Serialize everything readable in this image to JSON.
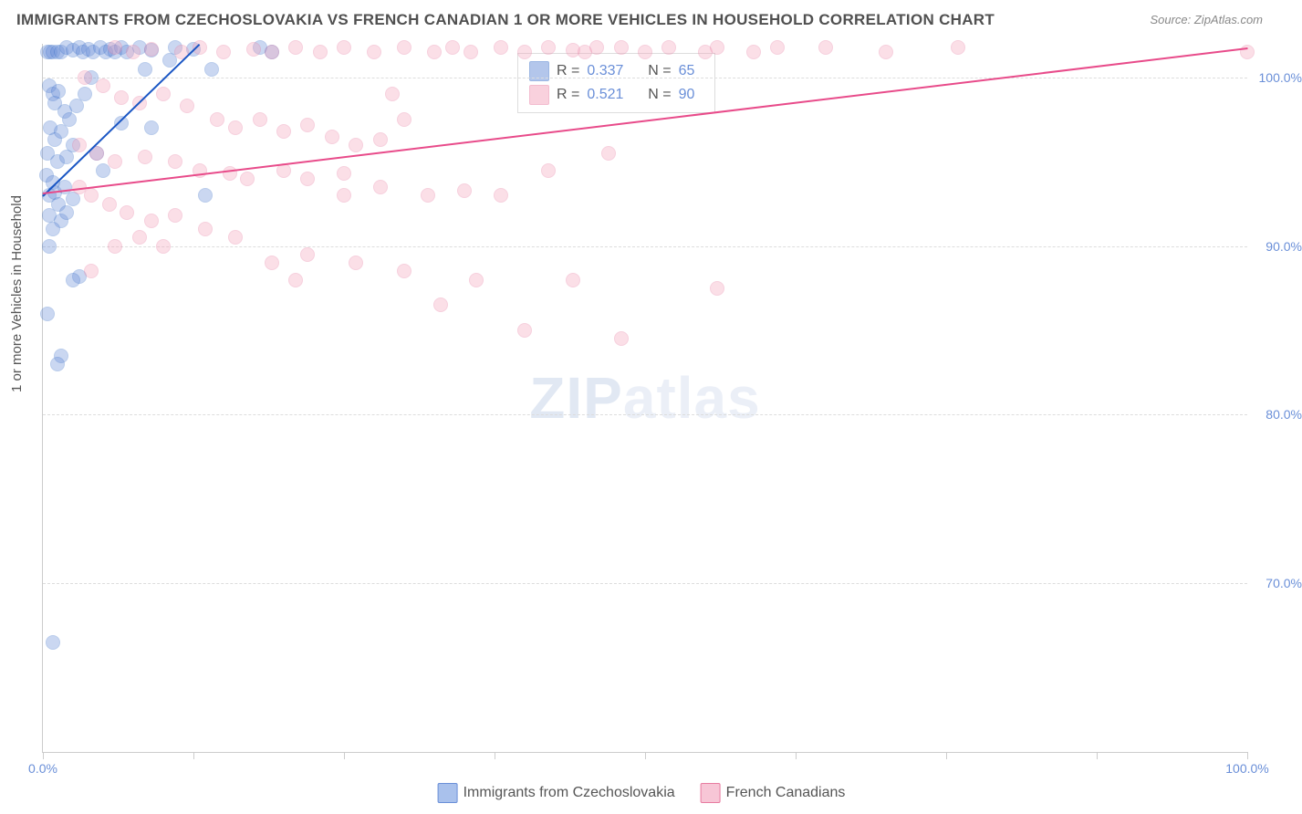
{
  "title": "IMMIGRANTS FROM CZECHOSLOVAKIA VS FRENCH CANADIAN 1 OR MORE VEHICLES IN HOUSEHOLD CORRELATION CHART",
  "source": "Source: ZipAtlas.com",
  "ylabel": "1 or more Vehicles in Household",
  "watermark_zip": "ZIP",
  "watermark_rest": "atlas",
  "chart": {
    "type": "scatter",
    "background_color": "#ffffff",
    "grid_color": "#dddddd",
    "axis_color": "#cccccc",
    "tick_label_color": "#6a8fd8",
    "label_color": "#555555",
    "label_fontsize": 15,
    "tick_fontsize": 14,
    "title_fontsize": 17,
    "title_color": "#505050",
    "xlim": [
      0,
      100
    ],
    "ylim": [
      60,
      102
    ],
    "marker_size": 14,
    "marker_opacity": 0.35,
    "yticks": [
      70,
      80,
      90,
      100
    ],
    "ytick_labels": [
      "70.0%",
      "80.0%",
      "90.0%",
      "100.0%"
    ],
    "xticks": [
      0,
      12.5,
      25,
      37.5,
      50,
      62.5,
      75,
      87.5,
      100
    ],
    "xtick_labels_shown": {
      "0": "0.0%",
      "100": "100.0%"
    }
  },
  "series": [
    {
      "name": "Immigrants from Czechoslovakia",
      "fill_color": "#6a8fd8",
      "stroke_color": "#3a6fc8",
      "trend_color": "#1a56c4",
      "R": "0.337",
      "N": "65",
      "trend": {
        "x1": 0,
        "y1": 93.0,
        "x2": 13.0,
        "y2": 102.0
      },
      "points": [
        [
          0.4,
          101.5
        ],
        [
          0.6,
          101.5
        ],
        [
          0.8,
          101.5
        ],
        [
          1.2,
          101.5
        ],
        [
          1.5,
          101.5
        ],
        [
          2.0,
          101.8
        ],
        [
          2.5,
          101.6
        ],
        [
          3.0,
          101.8
        ],
        [
          3.3,
          101.5
        ],
        [
          3.8,
          101.7
        ],
        [
          4.2,
          101.5
        ],
        [
          4.8,
          101.8
        ],
        [
          5.2,
          101.5
        ],
        [
          5.6,
          101.7
        ],
        [
          6.0,
          101.5
        ],
        [
          6.5,
          101.8
        ],
        [
          7.0,
          101.5
        ],
        [
          8.0,
          101.8
        ],
        [
          9.0,
          101.6
        ],
        [
          11.0,
          101.8
        ],
        [
          12.5,
          101.7
        ],
        [
          14.0,
          100.5
        ],
        [
          0.5,
          99.5
        ],
        [
          0.8,
          99.0
        ],
        [
          1.0,
          98.5
        ],
        [
          1.3,
          99.2
        ],
        [
          1.8,
          98.0
        ],
        [
          2.2,
          97.5
        ],
        [
          0.6,
          97.0
        ],
        [
          1.0,
          96.3
        ],
        [
          1.5,
          96.8
        ],
        [
          2.5,
          96.0
        ],
        [
          6.5,
          97.3
        ],
        [
          9.0,
          97.0
        ],
        [
          0.4,
          95.5
        ],
        [
          1.2,
          95.0
        ],
        [
          2.0,
          95.3
        ],
        [
          4.5,
          95.5
        ],
        [
          0.3,
          94.2
        ],
        [
          0.8,
          93.8
        ],
        [
          0.5,
          93.0
        ],
        [
          1.0,
          93.2
        ],
        [
          1.8,
          93.5
        ],
        [
          1.3,
          92.5
        ],
        [
          2.5,
          92.8
        ],
        [
          5.0,
          94.5
        ],
        [
          0.5,
          91.8
        ],
        [
          1.5,
          91.5
        ],
        [
          0.8,
          91.0
        ],
        [
          2.0,
          92.0
        ],
        [
          13.5,
          93.0
        ],
        [
          0.5,
          90.0
        ],
        [
          3.0,
          88.2
        ],
        [
          2.5,
          88.0
        ],
        [
          0.4,
          86.0
        ],
        [
          1.5,
          83.5
        ],
        [
          1.2,
          83.0
        ],
        [
          0.8,
          66.5
        ],
        [
          18.0,
          101.8
        ],
        [
          4.0,
          100.0
        ],
        [
          19.0,
          101.5
        ],
        [
          8.5,
          100.5
        ],
        [
          10.5,
          101.0
        ],
        [
          3.5,
          99.0
        ],
        [
          2.8,
          98.3
        ]
      ]
    },
    {
      "name": "French Canadians",
      "fill_color": "#f4a5bd",
      "stroke_color": "#e87ba0",
      "trend_color": "#e84b8a",
      "R": "0.521",
      "N": "90",
      "trend": {
        "x1": 0,
        "y1": 93.2,
        "x2": 100.0,
        "y2": 101.8
      },
      "points": [
        [
          6.0,
          101.8
        ],
        [
          7.5,
          101.5
        ],
        [
          9.0,
          101.7
        ],
        [
          11.5,
          101.5
        ],
        [
          13.0,
          101.8
        ],
        [
          15.0,
          101.5
        ],
        [
          17.5,
          101.7
        ],
        [
          19.0,
          101.5
        ],
        [
          21.0,
          101.8
        ],
        [
          23.0,
          101.5
        ],
        [
          25.0,
          101.8
        ],
        [
          27.5,
          101.5
        ],
        [
          30.0,
          101.8
        ],
        [
          32.5,
          101.5
        ],
        [
          34.0,
          101.8
        ],
        [
          35.5,
          101.5
        ],
        [
          38.0,
          101.8
        ],
        [
          40.0,
          101.5
        ],
        [
          42.0,
          101.8
        ],
        [
          44.0,
          101.6
        ],
        [
          46.0,
          101.8
        ],
        [
          65.0,
          101.8
        ],
        [
          70.0,
          101.5
        ],
        [
          76.0,
          101.8
        ],
        [
          100.0,
          101.5
        ],
        [
          3.5,
          100.0
        ],
        [
          5.0,
          99.5
        ],
        [
          6.5,
          98.8
        ],
        [
          8.0,
          98.5
        ],
        [
          10.0,
          99.0
        ],
        [
          12.0,
          98.3
        ],
        [
          14.5,
          97.5
        ],
        [
          16.0,
          97.0
        ],
        [
          18.0,
          97.5
        ],
        [
          20.0,
          96.8
        ],
        [
          22.0,
          97.2
        ],
        [
          24.0,
          96.5
        ],
        [
          26.0,
          96.0
        ],
        [
          28.0,
          96.3
        ],
        [
          30.0,
          97.5
        ],
        [
          3.0,
          96.0
        ],
        [
          4.5,
          95.5
        ],
        [
          6.0,
          95.0
        ],
        [
          8.5,
          95.3
        ],
        [
          11.0,
          95.0
        ],
        [
          13.0,
          94.5
        ],
        [
          15.5,
          94.3
        ],
        [
          17.0,
          94.0
        ],
        [
          20.0,
          94.5
        ],
        [
          22.0,
          94.0
        ],
        [
          25.0,
          94.3
        ],
        [
          28.0,
          93.5
        ],
        [
          32.0,
          93.0
        ],
        [
          35.0,
          93.3
        ],
        [
          38.0,
          93.0
        ],
        [
          42.0,
          94.5
        ],
        [
          47.0,
          95.5
        ],
        [
          50.0,
          101.5
        ],
        [
          52.0,
          101.8
        ],
        [
          55.0,
          101.5
        ],
        [
          3.0,
          93.5
        ],
        [
          4.0,
          93.0
        ],
        [
          5.5,
          92.5
        ],
        [
          7.0,
          92.0
        ],
        [
          9.0,
          91.5
        ],
        [
          11.0,
          91.8
        ],
        [
          13.5,
          91.0
        ],
        [
          16.0,
          90.5
        ],
        [
          19.0,
          89.0
        ],
        [
          22.0,
          89.5
        ],
        [
          26.0,
          89.0
        ],
        [
          30.0,
          88.5
        ],
        [
          36.0,
          88.0
        ],
        [
          21.0,
          88.0
        ],
        [
          33.0,
          86.5
        ],
        [
          40.0,
          85.0
        ],
        [
          48.0,
          84.5
        ],
        [
          56.0,
          87.5
        ],
        [
          44.0,
          88.0
        ],
        [
          4.0,
          88.5
        ],
        [
          6.0,
          90.0
        ],
        [
          8.0,
          90.5
        ],
        [
          10.0,
          90.0
        ],
        [
          25.0,
          93.0
        ],
        [
          56.0,
          101.8
        ],
        [
          59.0,
          101.5
        ],
        [
          61.0,
          101.8
        ],
        [
          29.0,
          99.0
        ],
        [
          45.0,
          101.5
        ],
        [
          48.0,
          101.8
        ]
      ]
    }
  ],
  "legend_bottom": [
    {
      "label": "Immigrants from Czechoslovakia",
      "fill": "#a9c1ec",
      "stroke": "#6a8fd8"
    },
    {
      "label": "French Canadians",
      "fill": "#f7c6d6",
      "stroke": "#e87ba0"
    }
  ],
  "legend_stats_labels": {
    "R": "R =",
    "N": "N ="
  }
}
